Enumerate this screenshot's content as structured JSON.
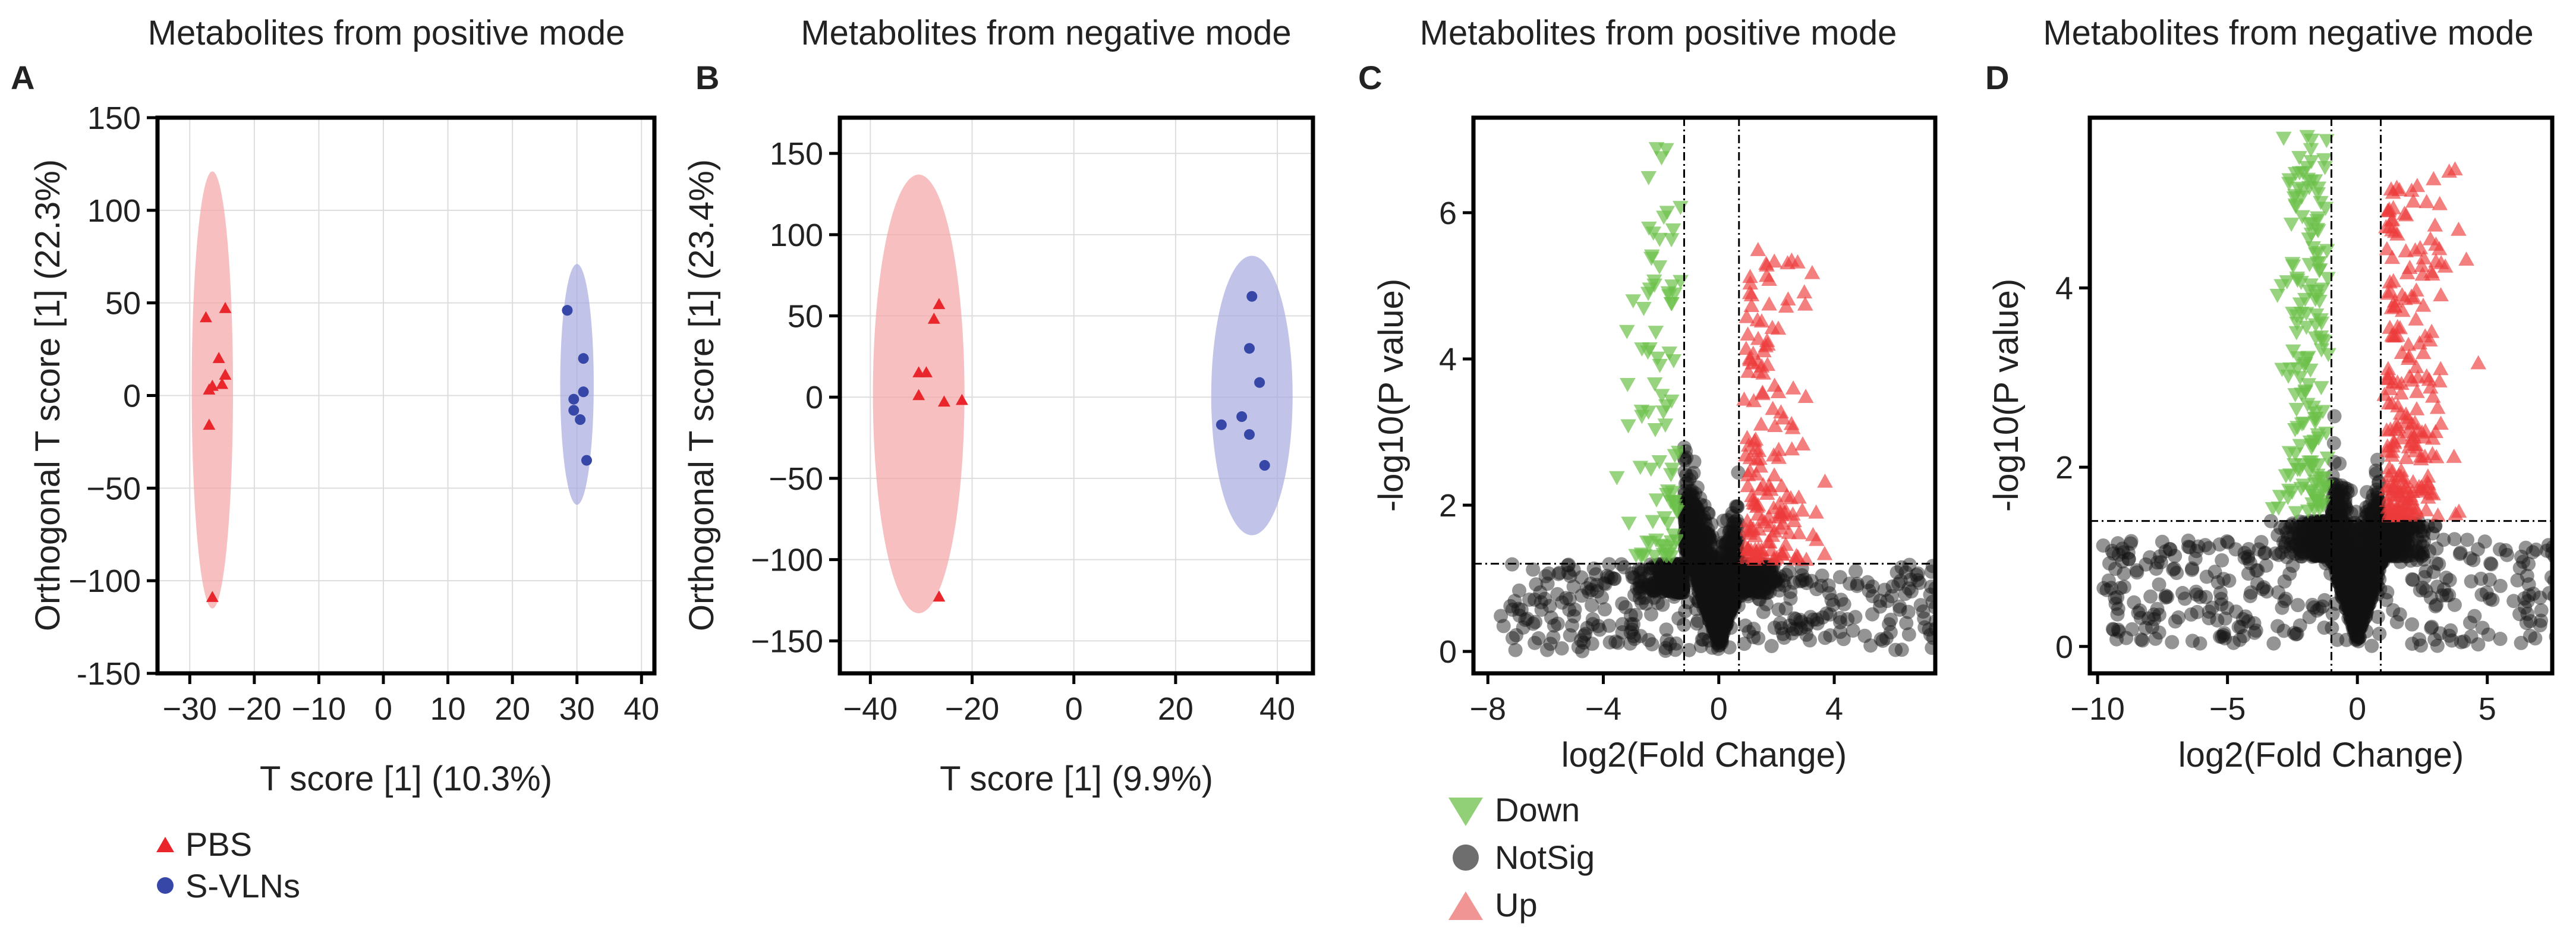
{
  "colors": {
    "pbs": "#e8262c",
    "svlns": "#3647a8",
    "pbs_ellipse": "#f4a4a4",
    "svlns_ellipse": "#a7a9de",
    "down": "#6cc04a",
    "notsig": "#111111",
    "up": "#ec3a3a"
  },
  "legend_pca": [
    {
      "label": "PBS",
      "color": "#e8262c",
      "marker": "triangle"
    },
    {
      "label": "S-VLNs",
      "color": "#3647a8",
      "marker": "circle"
    }
  ],
  "legend_volcano": [
    {
      "label": "Down",
      "color": "#6cc04a",
      "marker": "triangle-down"
    },
    {
      "label": "NotSig",
      "color": "#555555",
      "marker": "circle"
    },
    {
      "label": "Up",
      "color": "#ec7070",
      "marker": "triangle"
    }
  ],
  "chart_data": [
    {
      "panel": "A",
      "type": "scatter",
      "title": "Metabolites from positive mode",
      "xlabel": "T score [1] (10.3%)",
      "ylabel": "Orthogonal T score [1] (22.3%)",
      "xlim": [
        -35,
        42
      ],
      "ylim": [
        -150,
        150
      ],
      "xticks": [
        -30,
        -20,
        -10,
        0,
        10,
        20,
        30,
        40
      ],
      "xtick_labels": [
        "−30",
        "−20",
        "−10",
        "0",
        "10",
        "20",
        "30",
        "40"
      ],
      "yticks": [
        -150,
        -100,
        -50,
        0,
        50,
        100,
        150
      ],
      "ytick_labels": [
        "-150",
        "−100",
        "−50",
        "0",
        "50",
        "100",
        "150"
      ],
      "series": [
        {
          "name": "PBS",
          "marker": "triangle",
          "ellipse": {
            "cx": -26.5,
            "cy": 3,
            "rx": 3.2,
            "ry": 118
          },
          "points": [
            [
              -27.5,
              42
            ],
            [
              -24.5,
              47
            ],
            [
              -25.5,
              20
            ],
            [
              -24.5,
              11
            ],
            [
              -26.5,
              5
            ],
            [
              -27,
              3
            ],
            [
              -25,
              6
            ],
            [
              -27,
              -16
            ],
            [
              -26.5,
              -109
            ]
          ]
        },
        {
          "name": "S-VLNs",
          "marker": "circle",
          "ellipse": {
            "cx": 30,
            "cy": 6,
            "rx": 2.6,
            "ry": 65
          },
          "points": [
            [
              28.5,
              46
            ],
            [
              31,
              20
            ],
            [
              31,
              2
            ],
            [
              29.5,
              -2
            ],
            [
              29.5,
              -8
            ],
            [
              30.5,
              -13
            ],
            [
              31.5,
              -35
            ]
          ]
        }
      ]
    },
    {
      "panel": "B",
      "type": "scatter",
      "title": "Metabolites from negative mode",
      "xlabel": "T score [1] (9.9%)",
      "ylabel": "Orthogonal T score [1] (23.4%)",
      "xlim": [
        -46,
        47
      ],
      "ylim": [
        -170,
        172
      ],
      "xticks": [
        -40,
        -20,
        0,
        20,
        40
      ],
      "xtick_labels": [
        "−40",
        "−20",
        "0",
        "20",
        "40"
      ],
      "yticks": [
        -150,
        -100,
        -50,
        0,
        50,
        100,
        150
      ],
      "ytick_labels": [
        "−150",
        "−100",
        "−50",
        "0",
        "50",
        "100",
        "150"
      ],
      "series": [
        {
          "name": "PBS",
          "marker": "triangle",
          "ellipse": {
            "cx": -30.5,
            "cy": 2,
            "rx": 9,
            "ry": 135
          },
          "points": [
            [
              -26.5,
              57
            ],
            [
              -27.5,
              48
            ],
            [
              -30.5,
              15
            ],
            [
              -29,
              15
            ],
            [
              -30.5,
              1
            ],
            [
              -25.5,
              -3
            ],
            [
              -22,
              -2
            ],
            [
              -26.5,
              -123
            ]
          ]
        },
        {
          "name": "S-VLNs",
          "marker": "circle",
          "ellipse": {
            "cx": 35,
            "cy": 1,
            "rx": 8,
            "ry": 86
          },
          "points": [
            [
              35,
              62
            ],
            [
              34.5,
              30
            ],
            [
              36.5,
              9
            ],
            [
              33,
              -12
            ],
            [
              29,
              -17
            ],
            [
              34.5,
              -23
            ],
            [
              37.5,
              -42
            ]
          ]
        }
      ]
    },
    {
      "panel": "C",
      "type": "scatter",
      "subtype": "volcano",
      "title": "Metabolites from positive mode",
      "xlabel": "log2(Fold Change)",
      "ylabel": "-log10(P value)",
      "xlim": [
        -8.5,
        7.5
      ],
      "ylim": [
        -0.3,
        7.3
      ],
      "xticks": [
        -8,
        -4,
        0,
        4
      ],
      "xtick_labels": [
        "−8",
        "−4",
        "0",
        "4"
      ],
      "yticks": [
        0,
        2,
        4,
        6
      ],
      "ytick_labels": [
        "0",
        "2",
        "4",
        "6"
      ],
      "thresholds": {
        "x": [
          -1.2,
          0.7
        ],
        "y": 1.2
      },
      "categories": [
        "Down",
        "NotSig",
        "Up"
      ],
      "series": [
        {
          "name": "Down",
          "marker": "triangle-down",
          "count": 90
        },
        {
          "name": "NotSig",
          "marker": "circle",
          "count": 2600
        },
        {
          "name": "Up",
          "marker": "triangle",
          "count": 160
        }
      ]
    },
    {
      "panel": "D",
      "type": "scatter",
      "subtype": "volcano",
      "title": "Metabolites from negative mode",
      "xlabel": "log2(Fold Change)",
      "ylabel": "-log10(P value)",
      "xlim": [
        -10.3,
        7.5
      ],
      "ylim": [
        -0.3,
        5.9
      ],
      "xticks": [
        -10,
        -5,
        0,
        5
      ],
      "xtick_labels": [
        "−10",
        "−5",
        "0",
        "5"
      ],
      "yticks": [
        0,
        2,
        4
      ],
      "ytick_labels": [
        "0",
        "2",
        "4"
      ],
      "thresholds": {
        "x": [
          -1.0,
          0.9
        ],
        "y": 1.4
      },
      "categories": [
        "Down",
        "NotSig",
        "Up"
      ],
      "series": [
        {
          "name": "Down",
          "marker": "triangle-down",
          "count": 170
        },
        {
          "name": "NotSig",
          "marker": "circle",
          "count": 2600
        },
        {
          "name": "Up",
          "marker": "triangle",
          "count": 220
        }
      ]
    }
  ]
}
